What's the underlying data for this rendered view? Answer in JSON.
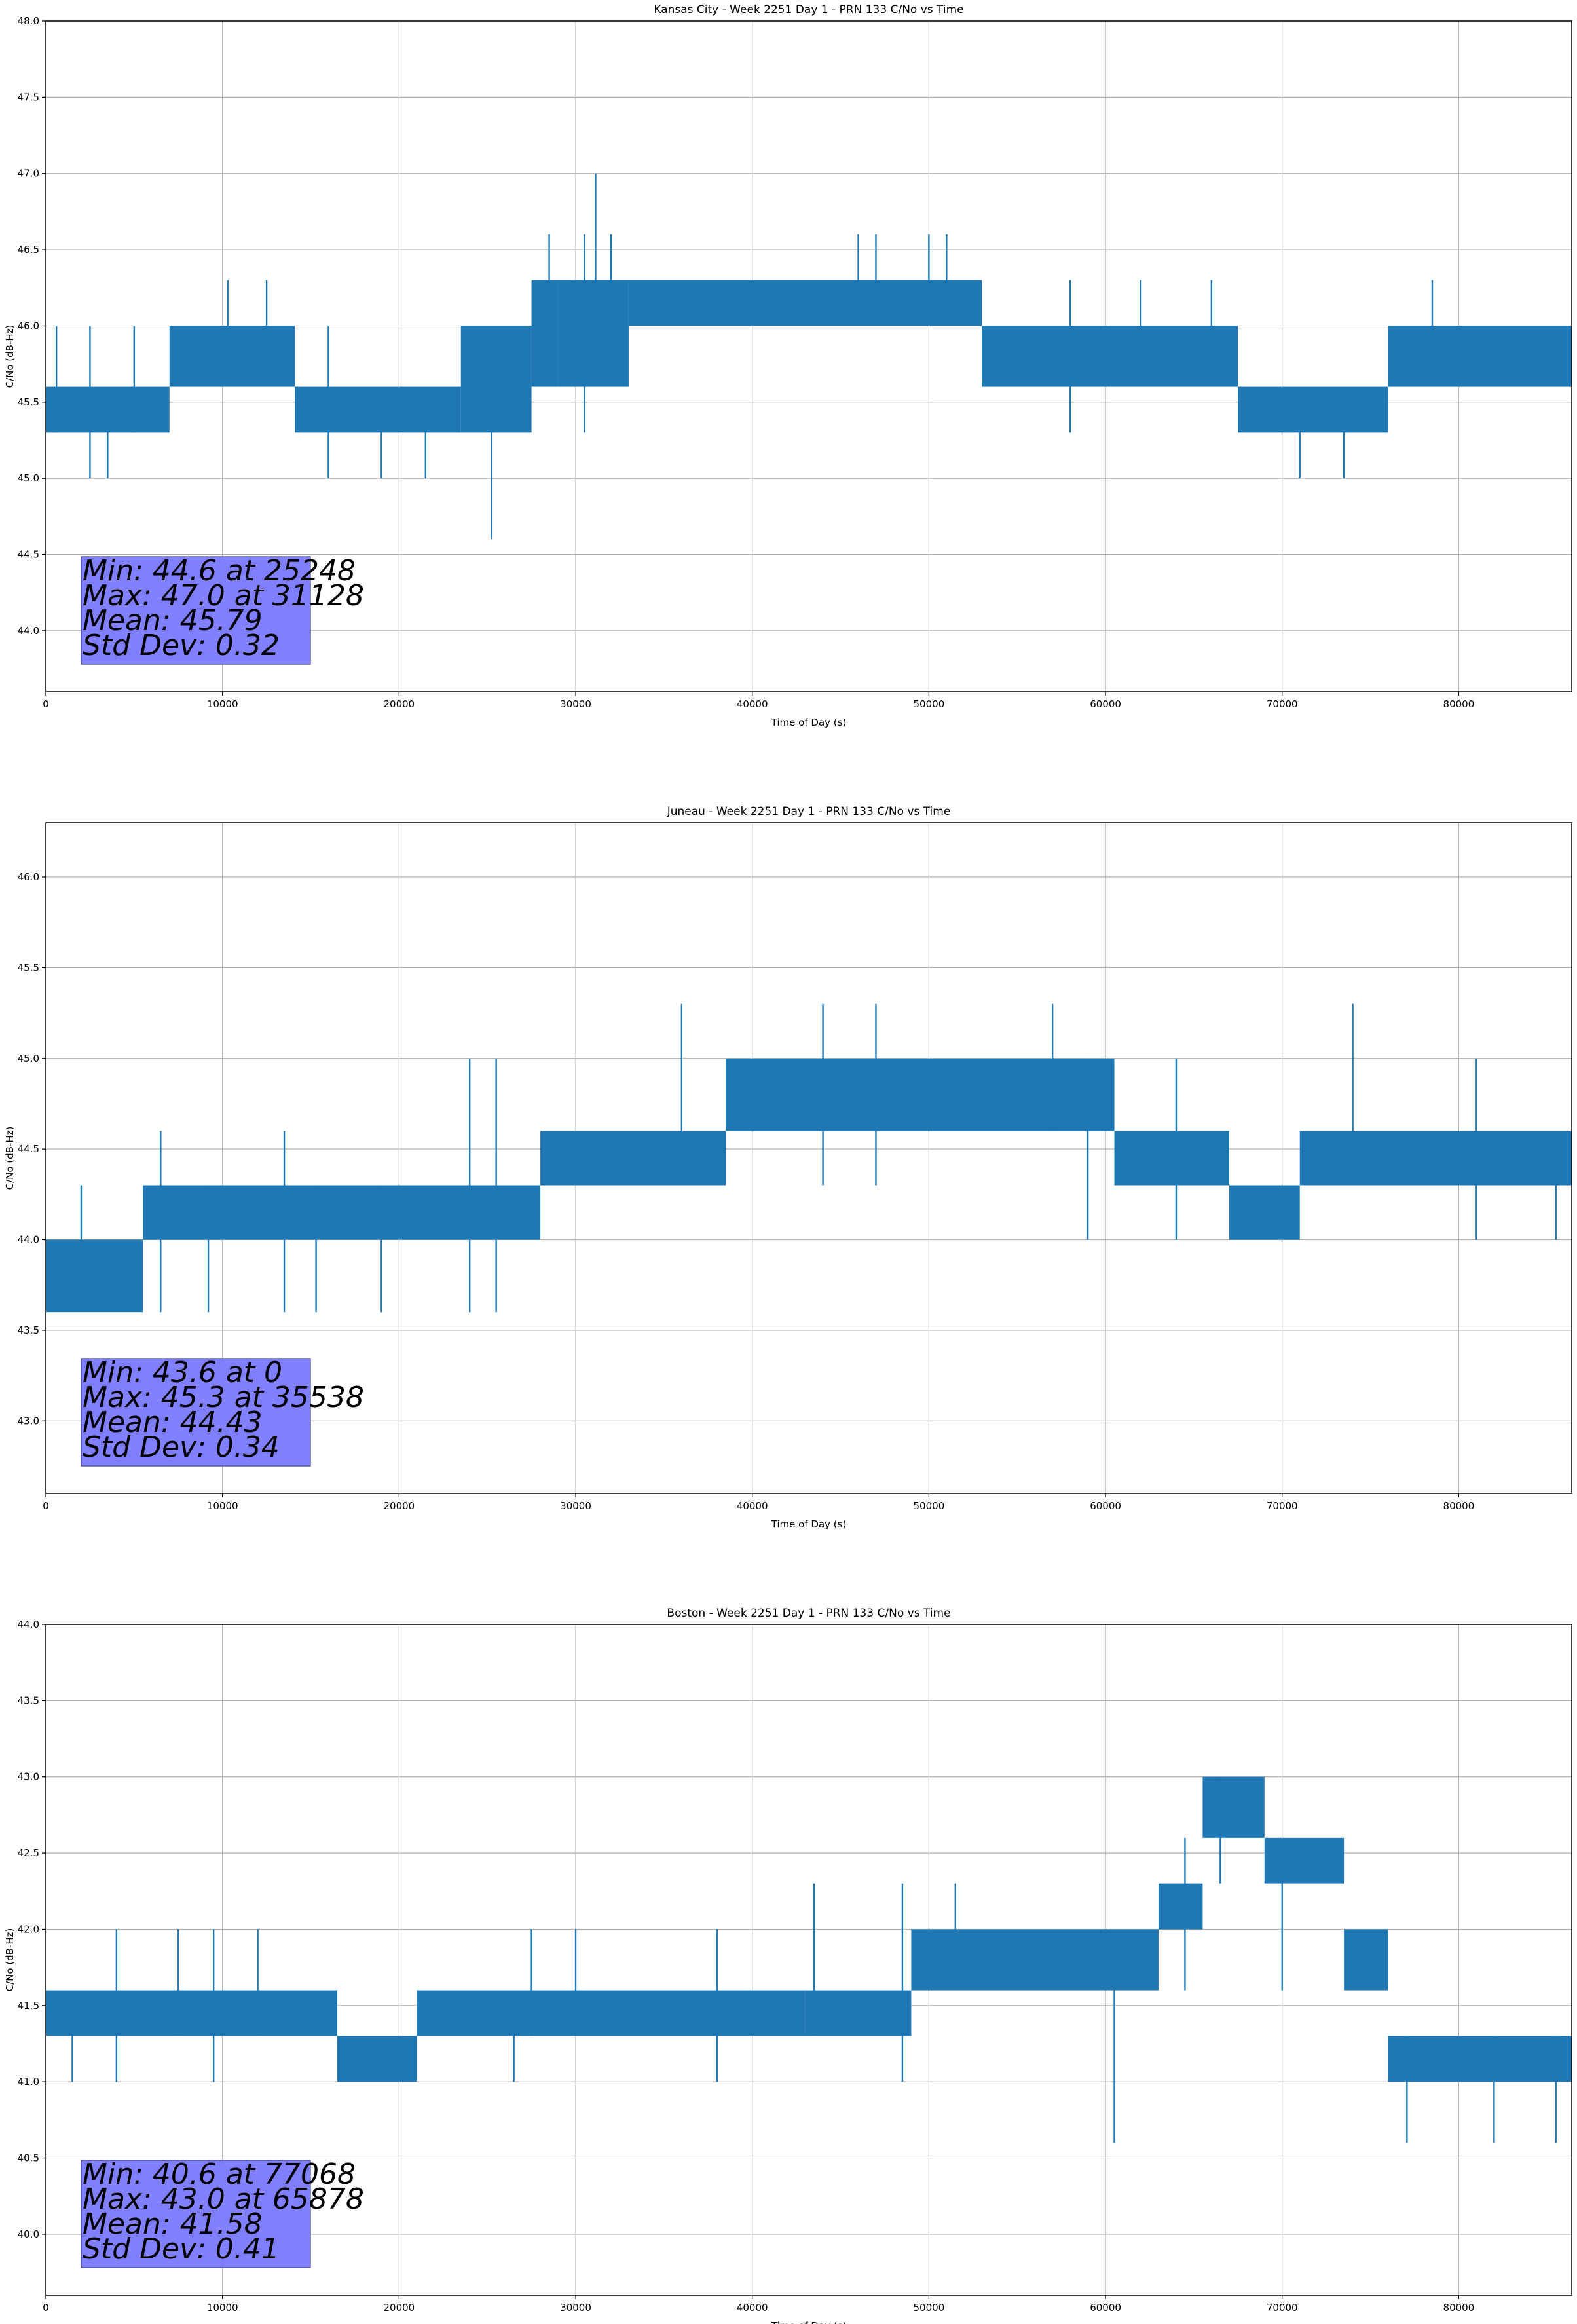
{
  "chart_data": [
    {
      "type": "line",
      "title": "Kansas City - Week 2251 Day 1 - PRN 133 C/No vs Time",
      "xlabel": "Time of Day (s)",
      "ylabel": "C/No (dB-Hz)",
      "xlim": [
        0,
        86400
      ],
      "ylim": [
        43.6,
        48.0
      ],
      "xticks": [
        0,
        10000,
        20000,
        30000,
        40000,
        50000,
        60000,
        70000,
        80000
      ],
      "yticks": [
        "44.0",
        "44.5",
        "45.0",
        "45.5",
        "46.0",
        "46.5",
        "47.0",
        "47.5",
        "48.0"
      ],
      "grid": true,
      "series": [
        {
          "color": "#1f77b4",
          "envelope": [
            {
              "x_start": 0,
              "x_end": 7000,
              "low": 45.3,
              "high": 45.6
            },
            {
              "x_start": 7000,
              "x_end": 14100,
              "low": 45.6,
              "high": 46.0
            },
            {
              "x_start": 14100,
              "x_end": 23500,
              "low": 45.3,
              "high": 45.6
            },
            {
              "x_start": 23500,
              "x_end": 27500,
              "low": 45.3,
              "high": 46.0
            },
            {
              "x_start": 27500,
              "x_end": 29000,
              "low": 45.6,
              "high": 46.3
            },
            {
              "x_start": 29000,
              "x_end": 33000,
              "low": 45.6,
              "high": 46.3
            },
            {
              "x_start": 33000,
              "x_end": 53000,
              "low": 46.0,
              "high": 46.3
            },
            {
              "x_start": 53000,
              "x_end": 67500,
              "low": 45.6,
              "high": 46.0
            },
            {
              "x_start": 67500,
              "x_end": 76000,
              "low": 45.3,
              "high": 45.6
            },
            {
              "x_start": 76000,
              "x_end": 86400,
              "low": 45.6,
              "high": 46.0
            }
          ],
          "spikes": [
            {
              "x": 600,
              "low": 45.3,
              "high": 46.0
            },
            {
              "x": 2500,
              "low": 45.0,
              "high": 46.0
            },
            {
              "x": 3500,
              "low": 45.0,
              "high": 45.6
            },
            {
              "x": 5000,
              "low": 45.3,
              "high": 46.0
            },
            {
              "x": 10300,
              "low": 45.6,
              "high": 46.3
            },
            {
              "x": 12500,
              "low": 45.6,
              "high": 46.3
            },
            {
              "x": 16000,
              "low": 45.0,
              "high": 46.0
            },
            {
              "x": 19000,
              "low": 45.0,
              "high": 45.6
            },
            {
              "x": 21500,
              "low": 45.0,
              "high": 45.6
            },
            {
              "x": 25248,
              "low": 44.6,
              "high": 45.6
            },
            {
              "x": 28500,
              "low": 46.3,
              "high": 46.6
            },
            {
              "x": 30500,
              "low": 45.3,
              "high": 46.6
            },
            {
              "x": 31128,
              "low": 46.3,
              "high": 47.0
            },
            {
              "x": 32000,
              "low": 46.3,
              "high": 46.6
            },
            {
              "x": 46000,
              "low": 46.3,
              "high": 46.6
            },
            {
              "x": 47000,
              "low": 46.3,
              "high": 46.6
            },
            {
              "x": 50000,
              "low": 46.3,
              "high": 46.6
            },
            {
              "x": 51000,
              "low": 46.3,
              "high": 46.6
            },
            {
              "x": 58000,
              "low": 45.3,
              "high": 46.3
            },
            {
              "x": 62000,
              "low": 45.6,
              "high": 46.3
            },
            {
              "x": 66000,
              "low": 45.6,
              "high": 46.3
            },
            {
              "x": 71000,
              "low": 45.0,
              "high": 45.6
            },
            {
              "x": 73500,
              "low": 45.0,
              "high": 45.6
            },
            {
              "x": 78500,
              "low": 45.6,
              "high": 46.3
            },
            {
              "x": 84500,
              "low": 45.6,
              "high": 46.0
            }
          ]
        }
      ],
      "annotation": {
        "lines": [
          "Min: 44.6 at 25248",
          "Max: 47.0 at 31128",
          "Mean: 45.79",
          "Std Dev: 0.32"
        ]
      }
    },
    {
      "type": "line",
      "title": "Juneau - Week 2251 Day 1 - PRN 133 C/No vs Time",
      "xlabel": "Time of Day (s)",
      "ylabel": "C/No (dB-Hz)",
      "xlim": [
        0,
        86400
      ],
      "ylim": [
        42.6,
        46.3
      ],
      "xticks": [
        0,
        10000,
        20000,
        30000,
        40000,
        50000,
        60000,
        70000,
        80000
      ],
      "yticks": [
        "43.0",
        "43.5",
        "44.0",
        "44.5",
        "45.0",
        "45.5",
        "46.0"
      ],
      "grid": true,
      "series": [
        {
          "color": "#1f77b4",
          "envelope": [
            {
              "x_start": 0,
              "x_end": 5500,
              "low": 43.6,
              "high": 44.0
            },
            {
              "x_start": 5500,
              "x_end": 28000,
              "low": 44.0,
              "high": 44.3
            },
            {
              "x_start": 28000,
              "x_end": 30500,
              "low": 44.3,
              "high": 44.6
            },
            {
              "x_start": 30500,
              "x_end": 38500,
              "low": 44.3,
              "high": 44.6
            },
            {
              "x_start": 38500,
              "x_end": 60500,
              "low": 44.6,
              "high": 45.0
            },
            {
              "x_start": 60500,
              "x_end": 67000,
              "low": 44.3,
              "high": 44.6
            },
            {
              "x_start": 67000,
              "x_end": 71000,
              "low": 44.0,
              "high": 44.3
            },
            {
              "x_start": 71000,
              "x_end": 86400,
              "low": 44.3,
              "high": 44.6
            }
          ],
          "spikes": [
            {
              "x": 2000,
              "low": 44.0,
              "high": 44.3
            },
            {
              "x": 6500,
              "low": 43.6,
              "high": 44.6
            },
            {
              "x": 9200,
              "low": 43.6,
              "high": 44.3
            },
            {
              "x": 13500,
              "low": 43.6,
              "high": 44.6
            },
            {
              "x": 15300,
              "low": 43.6,
              "high": 44.3
            },
            {
              "x": 19000,
              "low": 43.6,
              "high": 44.3
            },
            {
              "x": 24000,
              "low": 43.6,
              "high": 45.0
            },
            {
              "x": 25500,
              "low": 43.6,
              "high": 45.0
            },
            {
              "x": 36000,
              "low": 44.3,
              "high": 45.3
            },
            {
              "x": 44000,
              "low": 44.3,
              "high": 45.3
            },
            {
              "x": 47000,
              "low": 44.3,
              "high": 45.3
            },
            {
              "x": 57000,
              "low": 44.6,
              "high": 45.3
            },
            {
              "x": 59000,
              "low": 44.0,
              "high": 45.0
            },
            {
              "x": 64000,
              "low": 44.0,
              "high": 45.0
            },
            {
              "x": 74000,
              "low": 44.3,
              "high": 45.3
            },
            {
              "x": 81000,
              "low": 44.0,
              "high": 45.0
            },
            {
              "x": 85500,
              "low": 44.0,
              "high": 44.6
            }
          ]
        }
      ],
      "annotation": {
        "lines": [
          "Min: 43.6 at 0",
          "Max: 45.3 at 35538",
          "Mean: 44.43",
          "Std Dev: 0.34"
        ]
      }
    },
    {
      "type": "line",
      "title": "Boston - Week 2251 Day 1 - PRN 133 C/No vs Time",
      "xlabel": "Time of Day (s)",
      "ylabel": "C/No (dB-Hz)",
      "xlim": [
        0,
        86400
      ],
      "ylim": [
        39.6,
        44.0
      ],
      "xticks": [
        0,
        10000,
        20000,
        30000,
        40000,
        50000,
        60000,
        70000,
        80000
      ],
      "yticks": [
        "40.0",
        "40.5",
        "41.0",
        "41.5",
        "42.0",
        "42.5",
        "43.0",
        "43.5",
        "44.0"
      ],
      "grid": true,
      "series": [
        {
          "color": "#1f77b4",
          "envelope": [
            {
              "x_start": 0,
              "x_end": 16500,
              "low": 41.3,
              "high": 41.6
            },
            {
              "x_start": 16500,
              "x_end": 21000,
              "low": 41.0,
              "high": 41.3
            },
            {
              "x_start": 21000,
              "x_end": 43000,
              "low": 41.3,
              "high": 41.6
            },
            {
              "x_start": 43000,
              "x_end": 49000,
              "low": 41.3,
              "high": 41.6
            },
            {
              "x_start": 49000,
              "x_end": 61000,
              "low": 41.6,
              "high": 42.0
            },
            {
              "x_start": 61000,
              "x_end": 63000,
              "low": 41.6,
              "high": 42.0
            },
            {
              "x_start": 63000,
              "x_end": 65500,
              "low": 42.0,
              "high": 42.3
            },
            {
              "x_start": 65500,
              "x_end": 69000,
              "low": 42.6,
              "high": 43.0
            },
            {
              "x_start": 69000,
              "x_end": 73500,
              "low": 42.3,
              "high": 42.6
            },
            {
              "x_start": 73500,
              "x_end": 76000,
              "low": 41.6,
              "high": 42.0
            },
            {
              "x_start": 76000,
              "x_end": 86400,
              "low": 41.0,
              "high": 41.3
            }
          ],
          "spikes": [
            {
              "x": 1500,
              "low": 41.0,
              "high": 41.6
            },
            {
              "x": 4000,
              "low": 41.0,
              "high": 42.0
            },
            {
              "x": 7500,
              "low": 41.3,
              "high": 42.0
            },
            {
              "x": 9500,
              "low": 41.0,
              "high": 42.0
            },
            {
              "x": 12000,
              "low": 41.3,
              "high": 42.0
            },
            {
              "x": 26500,
              "low": 41.0,
              "high": 41.6
            },
            {
              "x": 27500,
              "low": 41.3,
              "high": 42.0
            },
            {
              "x": 30000,
              "low": 41.3,
              "high": 42.0
            },
            {
              "x": 38000,
              "low": 41.0,
              "high": 42.0
            },
            {
              "x": 43500,
              "low": 41.3,
              "high": 42.3
            },
            {
              "x": 48500,
              "low": 41.0,
              "high": 42.3
            },
            {
              "x": 51500,
              "low": 41.6,
              "high": 42.3
            },
            {
              "x": 60500,
              "low": 40.6,
              "high": 41.6
            },
            {
              "x": 64500,
              "low": 41.6,
              "high": 42.6
            },
            {
              "x": 66500,
              "low": 42.3,
              "high": 43.0
            },
            {
              "x": 70000,
              "low": 41.6,
              "high": 42.6
            },
            {
              "x": 77068,
              "low": 40.6,
              "high": 41.3
            },
            {
              "x": 82000,
              "low": 40.6,
              "high": 41.3
            },
            {
              "x": 85500,
              "low": 40.6,
              "high": 41.3
            }
          ]
        }
      ],
      "annotation": {
        "lines": [
          "Min: 40.6 at 77068",
          "Max: 43.0 at 65878",
          "Mean: 41.58",
          "Std Dev: 0.41"
        ]
      }
    }
  ]
}
